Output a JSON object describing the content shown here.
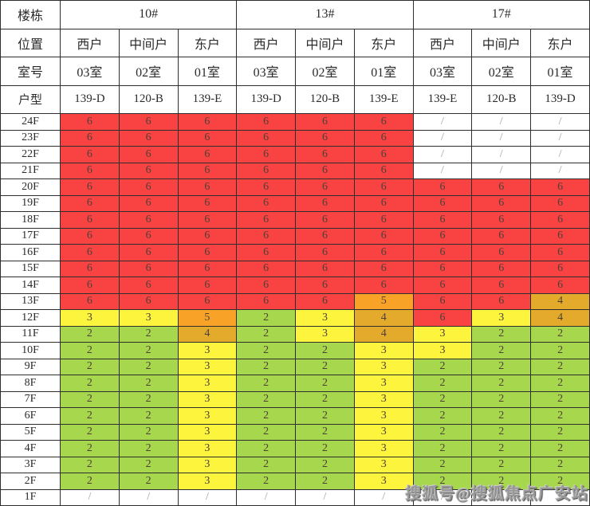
{
  "watermark": {
    "text": "搜狐号@搜狐焦点广安站"
  },
  "chart_data": {
    "type": "table",
    "corner_labels": [
      "楼栋",
      "位置",
      "室号",
      "户型"
    ],
    "buildings": [
      {
        "name": "10#"
      },
      {
        "name": "13#"
      },
      {
        "name": "17#"
      }
    ],
    "positions": [
      "西户",
      "中间户",
      "东户",
      "西户",
      "中间户",
      "东户",
      "西户",
      "中间户",
      "东户"
    ],
    "rooms": [
      "03室",
      "02室",
      "01室",
      "03室",
      "02室",
      "01室",
      "03室",
      "02室",
      "01室"
    ],
    "unit_types": [
      "139-D",
      "120-B",
      "139-E",
      "139-D",
      "120-B",
      "139-E",
      "139-E",
      "120-B",
      "139-D"
    ],
    "floors": [
      {
        "label": "24F",
        "values": [
          "6",
          "6",
          "6",
          "6",
          "6",
          "6",
          "/",
          "/",
          "/"
        ]
      },
      {
        "label": "23F",
        "values": [
          "6",
          "6",
          "6",
          "6",
          "6",
          "6",
          "/",
          "/",
          "/"
        ]
      },
      {
        "label": "22F",
        "values": [
          "6",
          "6",
          "6",
          "6",
          "6",
          "6",
          "/",
          "/",
          "/"
        ]
      },
      {
        "label": "21F",
        "values": [
          "6",
          "6",
          "6",
          "6",
          "6",
          "6",
          "/",
          "/",
          "/"
        ]
      },
      {
        "label": "20F",
        "values": [
          "6",
          "6",
          "6",
          "6",
          "6",
          "6",
          "6",
          "6",
          "6"
        ]
      },
      {
        "label": "19F",
        "values": [
          "6",
          "6",
          "6",
          "6",
          "6",
          "6",
          "6",
          "6",
          "6"
        ]
      },
      {
        "label": "18F",
        "values": [
          "6",
          "6",
          "6",
          "6",
          "6",
          "6",
          "6",
          "6",
          "6"
        ]
      },
      {
        "label": "17F",
        "values": [
          "6",
          "6",
          "6",
          "6",
          "6",
          "6",
          "6",
          "6",
          "6"
        ]
      },
      {
        "label": "16F",
        "values": [
          "6",
          "6",
          "6",
          "6",
          "6",
          "6",
          "6",
          "6",
          "6"
        ]
      },
      {
        "label": "15F",
        "values": [
          "6",
          "6",
          "6",
          "6",
          "6",
          "6",
          "6",
          "6",
          "6"
        ]
      },
      {
        "label": "14F",
        "values": [
          "6",
          "6",
          "6",
          "6",
          "6",
          "6",
          "6",
          "6",
          "6"
        ]
      },
      {
        "label": "13F",
        "values": [
          "6",
          "6",
          "6",
          "6",
          "6",
          "5",
          "6",
          "6",
          "4"
        ]
      },
      {
        "label": "12F",
        "values": [
          "3",
          "3",
          "5",
          "2",
          "3",
          "4",
          "6",
          "3",
          "4"
        ]
      },
      {
        "label": "11F",
        "values": [
          "2",
          "2",
          "4",
          "2",
          "3",
          "4",
          "3",
          "2",
          "2"
        ]
      },
      {
        "label": "10F",
        "values": [
          "2",
          "2",
          "3",
          "2",
          "2",
          "3",
          "3",
          "2",
          "2"
        ]
      },
      {
        "label": "9F",
        "values": [
          "2",
          "2",
          "3",
          "2",
          "2",
          "3",
          "2",
          "2",
          "2"
        ]
      },
      {
        "label": "8F",
        "values": [
          "2",
          "2",
          "3",
          "2",
          "2",
          "3",
          "2",
          "2",
          "2"
        ]
      },
      {
        "label": "7F",
        "values": [
          "2",
          "2",
          "3",
          "2",
          "2",
          "3",
          "2",
          "2",
          "2"
        ]
      },
      {
        "label": "6F",
        "values": [
          "2",
          "2",
          "3",
          "2",
          "2",
          "3",
          "2",
          "2",
          "2"
        ]
      },
      {
        "label": "5F",
        "values": [
          "2",
          "2",
          "3",
          "2",
          "2",
          "3",
          "2",
          "2",
          "2"
        ]
      },
      {
        "label": "4F",
        "values": [
          "2",
          "2",
          "3",
          "2",
          "2",
          "3",
          "2",
          "2",
          "2"
        ]
      },
      {
        "label": "3F",
        "values": [
          "2",
          "2",
          "3",
          "2",
          "2",
          "3",
          "2",
          "2",
          "2"
        ]
      },
      {
        "label": "2F",
        "values": [
          "2",
          "2",
          "3",
          "2",
          "2",
          "3",
          "2",
          "2",
          "2"
        ]
      },
      {
        "label": "1F",
        "values": [
          "/",
          "/",
          "/",
          "/",
          "/",
          "/",
          "/",
          "/",
          "/"
        ]
      }
    ],
    "cell_colors": {
      "6": "#f94343",
      "5": "#f9a228",
      "4": "#e4aa2b",
      "3": "#fdf43d",
      "2": "#a7d74d",
      "/": "#ffffff"
    },
    "value_text_color": "#4c4038",
    "slash_text_color": "#a0a0a0"
  }
}
